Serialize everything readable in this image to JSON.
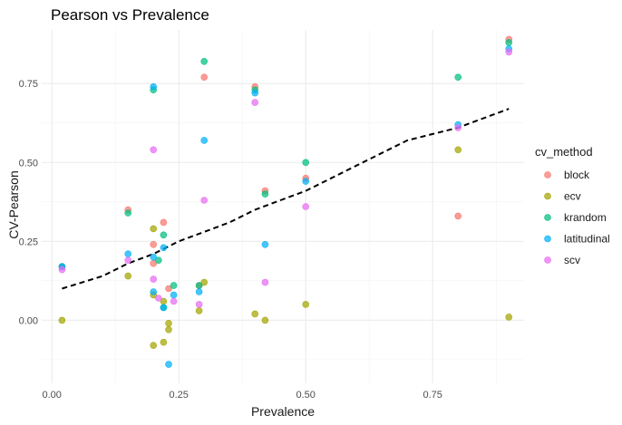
{
  "chart_data": {
    "type": "scatter",
    "title": "Pearson vs Prevalence",
    "xlabel": "Prevalence",
    "ylabel": "CV-Pearson",
    "xlim": [
      -0.02,
      0.93
    ],
    "ylim": [
      -0.2,
      0.92
    ],
    "x_ticks": [
      0.0,
      0.25,
      0.5,
      0.75
    ],
    "x_tick_labels": [
      "0.00",
      "0.25",
      "0.50",
      "0.75"
    ],
    "y_ticks": [
      0.0,
      0.25,
      0.5,
      0.75
    ],
    "y_tick_labels": [
      "0.00",
      "0.25",
      "0.50",
      "0.75"
    ],
    "grid": true,
    "legend": {
      "title": "cv_method",
      "position": "right"
    },
    "series": [
      {
        "name": "block",
        "color": "#F8766D",
        "points": [
          [
            0.02,
            0.17
          ],
          [
            0.15,
            0.35
          ],
          [
            0.2,
            0.24
          ],
          [
            0.2,
            0.18
          ],
          [
            0.22,
            0.31
          ],
          [
            0.23,
            0.1
          ],
          [
            0.29,
            0.11
          ],
          [
            0.3,
            0.77
          ],
          [
            0.4,
            0.74
          ],
          [
            0.42,
            0.41
          ],
          [
            0.5,
            0.45
          ],
          [
            0.8,
            0.33
          ],
          [
            0.9,
            0.89
          ]
        ]
      },
      {
        "name": "ecv",
        "color": "#A3A500",
        "points": [
          [
            0.02,
            0.0
          ],
          [
            0.15,
            0.14
          ],
          [
            0.2,
            0.29
          ],
          [
            0.2,
            0.08
          ],
          [
            0.2,
            -0.08
          ],
          [
            0.22,
            -0.07
          ],
          [
            0.22,
            0.06
          ],
          [
            0.23,
            -0.01
          ],
          [
            0.23,
            -0.03
          ],
          [
            0.29,
            0.03
          ],
          [
            0.3,
            0.12
          ],
          [
            0.4,
            0.02
          ],
          [
            0.42,
            -0.0
          ],
          [
            0.5,
            0.05
          ],
          [
            0.8,
            0.54
          ],
          [
            0.9,
            0.01
          ]
        ]
      },
      {
        "name": "krandom",
        "color": "#00BF7D",
        "points": [
          [
            0.02,
            0.17
          ],
          [
            0.15,
            0.34
          ],
          [
            0.2,
            0.73
          ],
          [
            0.21,
            0.19
          ],
          [
            0.22,
            0.27
          ],
          [
            0.22,
            0.04
          ],
          [
            0.24,
            0.11
          ],
          [
            0.29,
            0.11
          ],
          [
            0.3,
            0.82
          ],
          [
            0.4,
            0.73
          ],
          [
            0.42,
            0.4
          ],
          [
            0.5,
            0.5
          ],
          [
            0.8,
            0.77
          ],
          [
            0.9,
            0.88
          ]
        ]
      },
      {
        "name": "latitudinal",
        "color": "#00B0F6",
        "points": [
          [
            0.02,
            0.17
          ],
          [
            0.15,
            0.21
          ],
          [
            0.2,
            0.74
          ],
          [
            0.2,
            0.2
          ],
          [
            0.2,
            0.09
          ],
          [
            0.22,
            0.23
          ],
          [
            0.22,
            0.04
          ],
          [
            0.23,
            -0.14
          ],
          [
            0.24,
            0.08
          ],
          [
            0.29,
            0.09
          ],
          [
            0.3,
            0.57
          ],
          [
            0.4,
            0.72
          ],
          [
            0.42,
            0.24
          ],
          [
            0.5,
            0.44
          ],
          [
            0.8,
            0.62
          ],
          [
            0.9,
            0.86
          ]
        ]
      },
      {
        "name": "scv",
        "color": "#E76BF3",
        "points": [
          [
            0.02,
            0.16
          ],
          [
            0.15,
            0.19
          ],
          [
            0.2,
            0.54
          ],
          [
            0.2,
            0.13
          ],
          [
            0.21,
            0.07
          ],
          [
            0.24,
            0.06
          ],
          [
            0.29,
            0.05
          ],
          [
            0.3,
            0.38
          ],
          [
            0.4,
            0.69
          ],
          [
            0.42,
            0.12
          ],
          [
            0.5,
            0.36
          ],
          [
            0.8,
            0.61
          ],
          [
            0.9,
            0.85
          ]
        ]
      }
    ],
    "trend_line": {
      "style": "dashed",
      "color": "#000000",
      "x": [
        0.02,
        0.1,
        0.15,
        0.2,
        0.25,
        0.3,
        0.35,
        0.4,
        0.45,
        0.5,
        0.55,
        0.6,
        0.65,
        0.7,
        0.75,
        0.8,
        0.85,
        0.9
      ],
      "y": [
        0.1,
        0.14,
        0.18,
        0.21,
        0.25,
        0.28,
        0.31,
        0.35,
        0.38,
        0.41,
        0.45,
        0.49,
        0.53,
        0.57,
        0.59,
        0.61,
        0.64,
        0.67
      ]
    }
  }
}
